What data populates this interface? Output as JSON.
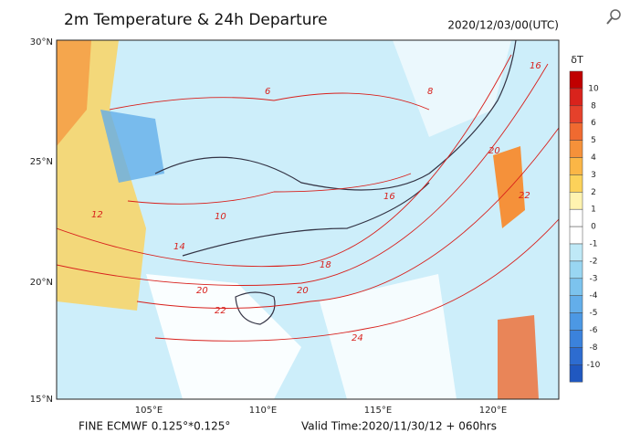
{
  "header": {
    "title": "2m Temperature & 24h Departure",
    "time": "2020/12/03/00(UTC)"
  },
  "axes": {
    "lat_labels": [
      "30°N",
      "25°N",
      "20°N",
      "15°N"
    ],
    "lon_labels": [
      "105°E",
      "110°E",
      "115°E",
      "120°E"
    ]
  },
  "colorbar": {
    "title": "δT",
    "labels": [
      "10",
      "8",
      "6",
      "5",
      "4",
      "3",
      "2",
      "1",
      "0",
      "-1",
      "-2",
      "-3",
      "-4",
      "-5",
      "-6",
      "-8",
      "-10"
    ],
    "colors": [
      "#c00000",
      "#d9231c",
      "#e5412b",
      "#f06a30",
      "#f5913a",
      "#fbb646",
      "#fcd25a",
      "#fff3b0",
      "#ffffff",
      "#ffffff",
      "#bfe9f7",
      "#99d6f2",
      "#7cc3ee",
      "#63aeea",
      "#4c98e4",
      "#3b82dc",
      "#2d6cd0",
      "#2058c0"
    ]
  },
  "contour_labels": [
    "6",
    "8",
    "16",
    "12",
    "10",
    "14",
    "16",
    "18",
    "20",
    "20",
    "22",
    "24",
    "22",
    "20"
  ],
  "footer": {
    "product": "FINE ECMWF 0.125°*0.125°",
    "valid": "Valid Time:2020/11/30/12 + 060hrs"
  }
}
